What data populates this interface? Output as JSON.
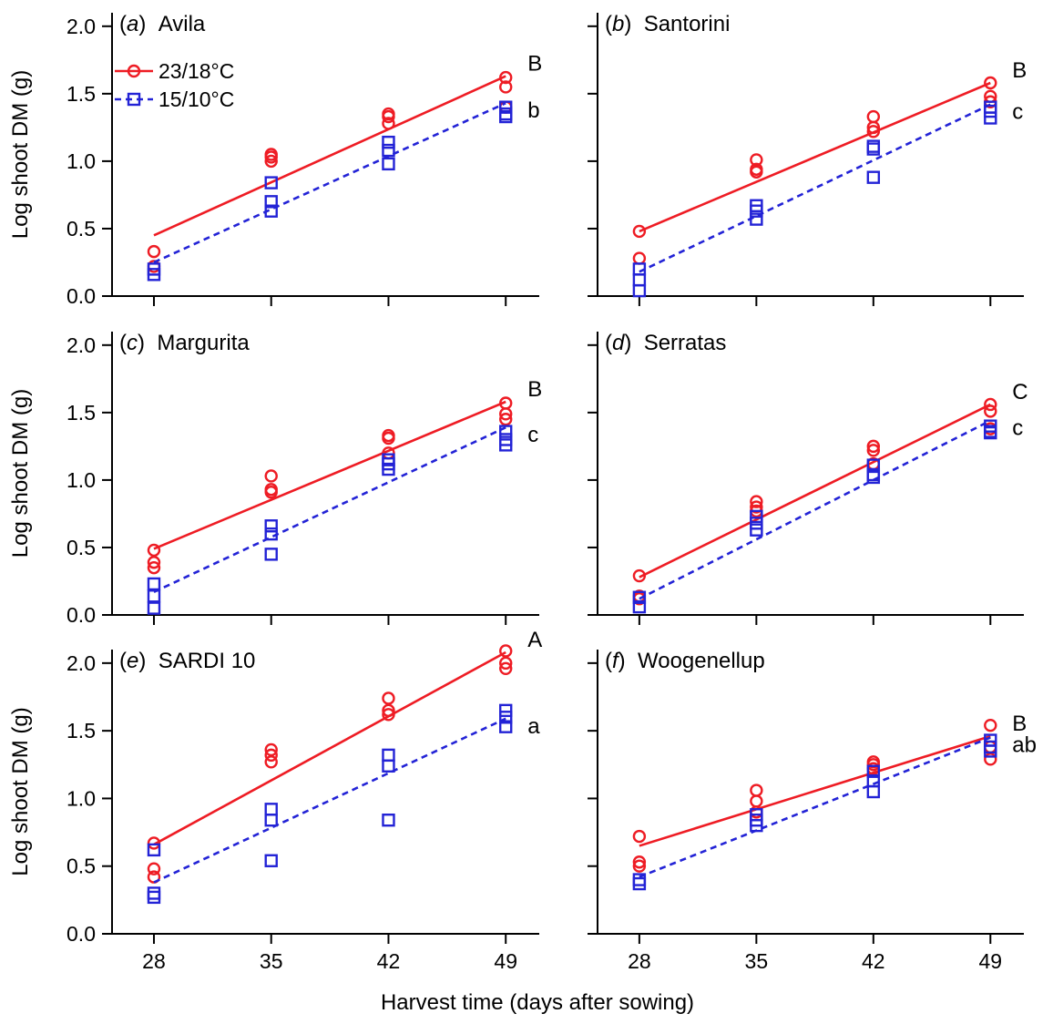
{
  "colors": {
    "warm": "#ee1c24",
    "cool": "#2323d6",
    "axis": "#000000"
  },
  "legend": {
    "warm_label": "23/18°C",
    "cool_label": "15/10°C"
  },
  "axes": {
    "xlabel": "Harvest time (days after sowing)",
    "ylabel": "Log shoot DM (g)",
    "x_ticks": [
      "28",
      "35",
      "42",
      "49"
    ],
    "y_ticks": [
      "0.0",
      "0.5",
      "1.0",
      "1.5",
      "2.0"
    ]
  },
  "chart_data": [
    {
      "type": "scatter",
      "panel": "(a)",
      "cultivar": "Avila",
      "x": [
        28,
        35,
        42,
        49
      ],
      "xlim": [
        25.5,
        51
      ],
      "ylim": [
        0,
        2.1
      ],
      "series": [
        {
          "name": "23/18°C",
          "marker": "circle",
          "line": "solid",
          "letter": "B",
          "points": [
            [
              28,
              0.33
            ],
            [
              28,
              0.22
            ],
            [
              35,
              1.05
            ],
            [
              35,
              1.03
            ],
            [
              35,
              1.0
            ],
            [
              42,
              1.35
            ],
            [
              42,
              1.33
            ],
            [
              42,
              1.28
            ],
            [
              49,
              1.62
            ],
            [
              49,
              1.55
            ],
            [
              49,
              1.4
            ]
          ],
          "fit": [
            [
              28,
              0.45
            ],
            [
              49,
              1.63
            ]
          ]
        },
        {
          "name": "15/10°C",
          "marker": "square",
          "line": "dashed",
          "letter": "b",
          "points": [
            [
              28,
              0.2
            ],
            [
              28,
              0.16
            ],
            [
              35,
              0.84
            ],
            [
              35,
              0.7
            ],
            [
              35,
              0.63
            ],
            [
              42,
              1.14
            ],
            [
              42,
              1.08
            ],
            [
              42,
              0.98
            ],
            [
              49,
              1.4
            ],
            [
              49,
              1.35
            ],
            [
              49,
              1.33
            ]
          ],
          "fit": [
            [
              28,
              0.25
            ],
            [
              49,
              1.43
            ]
          ]
        }
      ]
    },
    {
      "type": "scatter",
      "panel": "(b)",
      "cultivar": "Santorini",
      "x": [
        28,
        35,
        42,
        49
      ],
      "xlim": [
        25.5,
        51
      ],
      "ylim": [
        0,
        2.1
      ],
      "series": [
        {
          "name": "23/18°C",
          "marker": "circle",
          "line": "solid",
          "letter": "B",
          "points": [
            [
              28,
              0.48
            ],
            [
              28,
              0.28
            ],
            [
              35,
              1.01
            ],
            [
              35,
              0.94
            ],
            [
              35,
              0.92
            ],
            [
              42,
              1.33
            ],
            [
              42,
              1.25
            ],
            [
              42,
              1.22
            ],
            [
              49,
              1.58
            ],
            [
              49,
              1.48
            ],
            [
              49,
              1.44
            ]
          ],
          "fit": [
            [
              28,
              0.48
            ],
            [
              49,
              1.58
            ]
          ]
        },
        {
          "name": "15/10°C",
          "marker": "square",
          "line": "dashed",
          "letter": "c",
          "points": [
            [
              28,
              0.2
            ],
            [
              28,
              0.12
            ],
            [
              28,
              0.04
            ],
            [
              35,
              0.67
            ],
            [
              35,
              0.63
            ],
            [
              35,
              0.57
            ],
            [
              42,
              1.11
            ],
            [
              42,
              1.09
            ],
            [
              42,
              0.88
            ],
            [
              49,
              1.4
            ],
            [
              49,
              1.37
            ],
            [
              49,
              1.32
            ]
          ],
          "fit": [
            [
              28,
              0.18
            ],
            [
              49,
              1.42
            ]
          ]
        }
      ]
    },
    {
      "type": "scatter",
      "panel": "(c)",
      "cultivar": "Margurita",
      "x": [
        28,
        35,
        42,
        49
      ],
      "xlim": [
        25.5,
        51
      ],
      "ylim": [
        0,
        2.1
      ],
      "series": [
        {
          "name": "23/18°C",
          "marker": "circle",
          "line": "solid",
          "letter": "B",
          "points": [
            [
              28,
              0.48
            ],
            [
              28,
              0.39
            ],
            [
              28,
              0.35
            ],
            [
              35,
              1.03
            ],
            [
              35,
              0.93
            ],
            [
              35,
              0.91
            ],
            [
              42,
              1.33
            ],
            [
              42,
              1.31
            ],
            [
              42,
              1.2
            ],
            [
              49,
              1.57
            ],
            [
              49,
              1.49
            ],
            [
              49,
              1.45
            ]
          ],
          "fit": [
            [
              28,
              0.49
            ],
            [
              49,
              1.58
            ]
          ]
        },
        {
          "name": "15/10°C",
          "marker": "square",
          "line": "dashed",
          "letter": "c",
          "points": [
            [
              28,
              0.23
            ],
            [
              28,
              0.14
            ],
            [
              28,
              0.05
            ],
            [
              35,
              0.66
            ],
            [
              35,
              0.6
            ],
            [
              35,
              0.45
            ],
            [
              42,
              1.15
            ],
            [
              42,
              1.12
            ],
            [
              42,
              1.08
            ],
            [
              49,
              1.36
            ],
            [
              49,
              1.3
            ],
            [
              49,
              1.26
            ]
          ],
          "fit": [
            [
              28,
              0.17
            ],
            [
              49,
              1.39
            ]
          ]
        }
      ]
    },
    {
      "type": "scatter",
      "panel": "(d)",
      "cultivar": "Serratas",
      "x": [
        28,
        35,
        42,
        49
      ],
      "xlim": [
        25.5,
        51
      ],
      "ylim": [
        0,
        2.1
      ],
      "series": [
        {
          "name": "23/18°C",
          "marker": "circle",
          "line": "solid",
          "letter": "C",
          "points": [
            [
              28,
              0.29
            ],
            [
              28,
              0.14
            ],
            [
              28,
              0.12
            ],
            [
              35,
              0.84
            ],
            [
              35,
              0.8
            ],
            [
              35,
              0.77
            ],
            [
              42,
              1.25
            ],
            [
              42,
              1.22
            ],
            [
              42,
              1.12
            ],
            [
              49,
              1.56
            ],
            [
              49,
              1.51
            ],
            [
              49,
              1.38
            ]
          ],
          "fit": [
            [
              28,
              0.28
            ],
            [
              49,
              1.56
            ]
          ]
        },
        {
          "name": "15/10°C",
          "marker": "square",
          "line": "dashed",
          "letter": "c",
          "points": [
            [
              28,
              0.13
            ],
            [
              28,
              0.06
            ],
            [
              35,
              0.73
            ],
            [
              35,
              0.68
            ],
            [
              35,
              0.63
            ],
            [
              42,
              1.11
            ],
            [
              42,
              1.04
            ],
            [
              42,
              1.02
            ],
            [
              49,
              1.4
            ],
            [
              49,
              1.36
            ],
            [
              49,
              1.35
            ]
          ],
          "fit": [
            [
              28,
              0.12
            ],
            [
              49,
              1.44
            ]
          ]
        }
      ]
    },
    {
      "type": "scatter",
      "panel": "(e)",
      "cultivar": "SARDI 10",
      "x": [
        28,
        35,
        42,
        49
      ],
      "xlim": [
        25.5,
        51
      ],
      "ylim": [
        0,
        2.1
      ],
      "series": [
        {
          "name": "23/18°C",
          "marker": "circle",
          "line": "solid",
          "letter": "A",
          "points": [
            [
              28,
              0.67
            ],
            [
              28,
              0.48
            ],
            [
              28,
              0.42
            ],
            [
              35,
              1.36
            ],
            [
              35,
              1.32
            ],
            [
              35,
              1.27
            ],
            [
              42,
              1.74
            ],
            [
              42,
              1.65
            ],
            [
              42,
              1.62
            ],
            [
              49,
              2.09
            ],
            [
              49,
              2.0
            ],
            [
              49,
              1.96
            ]
          ],
          "fit": [
            [
              28,
              0.66
            ],
            [
              49,
              2.08
            ]
          ]
        },
        {
          "name": "15/10°C",
          "marker": "square",
          "line": "dashed",
          "letter": "a",
          "points": [
            [
              28,
              0.62
            ],
            [
              28,
              0.3
            ],
            [
              28,
              0.27
            ],
            [
              35,
              0.92
            ],
            [
              35,
              0.84
            ],
            [
              35,
              0.54
            ],
            [
              42,
              1.32
            ],
            [
              42,
              1.24
            ],
            [
              42,
              0.84
            ],
            [
              49,
              1.65
            ],
            [
              49,
              1.6
            ],
            [
              49,
              1.53
            ]
          ],
          "fit": [
            [
              28,
              0.38
            ],
            [
              49,
              1.59
            ]
          ]
        }
      ]
    },
    {
      "type": "scatter",
      "panel": "(f)",
      "cultivar": "Woogenellup",
      "x": [
        28,
        35,
        42,
        49
      ],
      "xlim": [
        25.5,
        51
      ],
      "ylim": [
        0,
        2.1
      ],
      "series": [
        {
          "name": "23/18°C",
          "marker": "circle",
          "line": "solid",
          "letter": "B",
          "points": [
            [
              28,
              0.72
            ],
            [
              28,
              0.53
            ],
            [
              28,
              0.5
            ],
            [
              35,
              1.06
            ],
            [
              35,
              0.98
            ],
            [
              35,
              0.9
            ],
            [
              42,
              1.27
            ],
            [
              42,
              1.25
            ],
            [
              42,
              1.22
            ],
            [
              49,
              1.54
            ],
            [
              49,
              1.38
            ],
            [
              49,
              1.29
            ]
          ],
          "fit": [
            [
              28,
              0.65
            ],
            [
              49,
              1.46
            ]
          ]
        },
        {
          "name": "15/10°C",
          "marker": "square",
          "line": "dashed",
          "letter": "ab",
          "points": [
            [
              28,
              0.4
            ],
            [
              28,
              0.37
            ],
            [
              35,
              0.88
            ],
            [
              35,
              0.84
            ],
            [
              35,
              0.8
            ],
            [
              42,
              1.2
            ],
            [
              42,
              1.13
            ],
            [
              42,
              1.05
            ],
            [
              49,
              1.43
            ],
            [
              49,
              1.38
            ],
            [
              49,
              1.35
            ]
          ],
          "fit": [
            [
              28,
              0.42
            ],
            [
              49,
              1.45
            ]
          ]
        }
      ]
    }
  ]
}
